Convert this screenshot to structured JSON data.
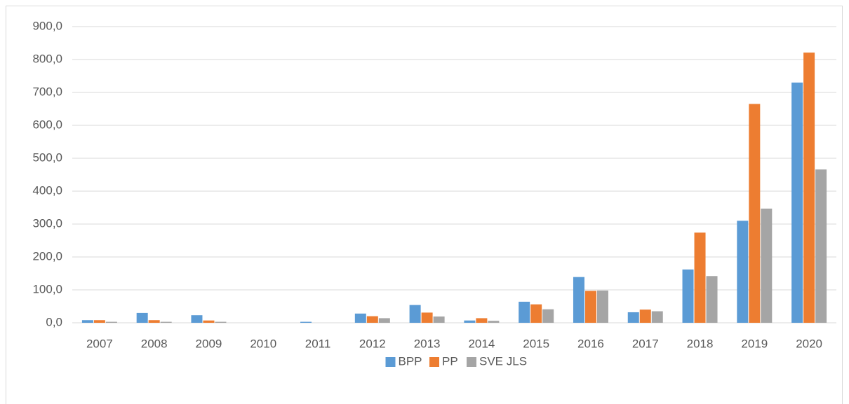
{
  "chart_data": {
    "type": "bar",
    "categories": [
      "2007",
      "2008",
      "2009",
      "2010",
      "2011",
      "2012",
      "2013",
      "2014",
      "2015",
      "2016",
      "2017",
      "2018",
      "2019",
      "2020"
    ],
    "series": [
      {
        "name": "BPP",
        "color": "#5b9bd5",
        "values": [
          8,
          30,
          23,
          0,
          3,
          28,
          54,
          7,
          64,
          139,
          32,
          162,
          310,
          730
        ]
      },
      {
        "name": "PP",
        "color": "#ed7d31",
        "values": [
          8,
          8,
          7,
          0,
          0,
          20,
          31,
          14,
          56,
          97,
          40,
          274,
          665,
          821
        ]
      },
      {
        "name": "SVE JLS",
        "color": "#a5a5a5",
        "values": [
          3,
          3,
          3,
          0,
          0,
          14,
          19,
          6,
          41,
          98,
          35,
          142,
          347,
          466
        ]
      }
    ],
    "ylim": [
      0,
      900
    ],
    "yticks": [
      {
        "value": 0,
        "label": "0,0"
      },
      {
        "value": 100,
        "label": "100,0"
      },
      {
        "value": 200,
        "label": "200,0"
      },
      {
        "value": 300,
        "label": "300,0"
      },
      {
        "value": 400,
        "label": "400,0"
      },
      {
        "value": 500,
        "label": "500,0"
      },
      {
        "value": 600,
        "label": "600,0"
      },
      {
        "value": 700,
        "label": "700,0"
      },
      {
        "value": 800,
        "label": "800,0"
      },
      {
        "value": 900,
        "label": "900,0"
      }
    ],
    "grid": true,
    "legend": "bottom"
  }
}
